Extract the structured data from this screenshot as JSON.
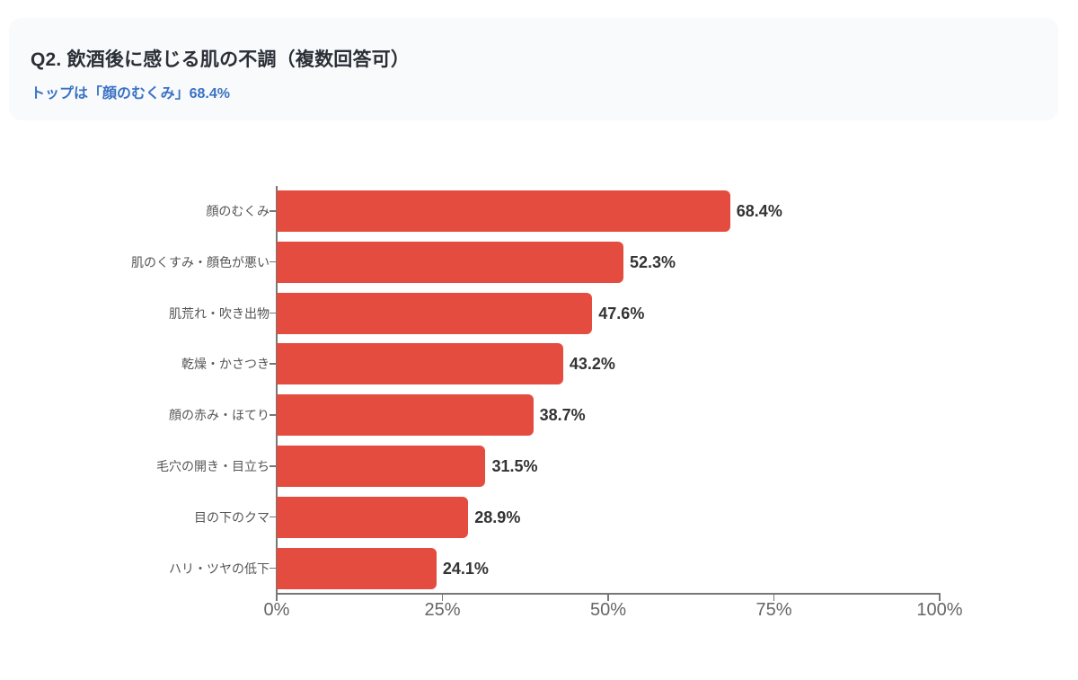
{
  "header": {
    "title": "Q2. 飲酒後に感じる肌の不調（複数回答可）",
    "subtitle": "トップは「顔のむくみ」68.4%"
  },
  "colors": {
    "bar": "#e34c3e",
    "subtitle": "#3a72c4",
    "header_bg": "#f8fafc"
  },
  "chart_data": {
    "type": "bar",
    "orientation": "horizontal",
    "title": "Q2. 飲酒後に感じる肌の不調（複数回答可）",
    "subtitle": "トップは「顔のむくみ」68.4%",
    "categories": [
      "顔のむくみ",
      "肌のくすみ・顔色が悪い",
      "肌荒れ・吹き出物",
      "乾燥・かさつき",
      "顔の赤み・ほてり",
      "毛穴の開き・目立ち",
      "目の下のクマ",
      "ハリ・ツヤの低下"
    ],
    "values": [
      68.4,
      52.3,
      47.6,
      43.2,
      38.7,
      31.5,
      28.9,
      24.1
    ],
    "value_labels": [
      "68.4%",
      "52.3%",
      "47.6%",
      "43.2%",
      "38.7%",
      "31.5%",
      "28.9%",
      "24.1%"
    ],
    "xlabel": "",
    "ylabel": "",
    "xlim": [
      0,
      100
    ],
    "x_ticks": [
      "0%",
      "25%",
      "50%",
      "75%",
      "100%"
    ],
    "grid": false,
    "legend": null
  }
}
